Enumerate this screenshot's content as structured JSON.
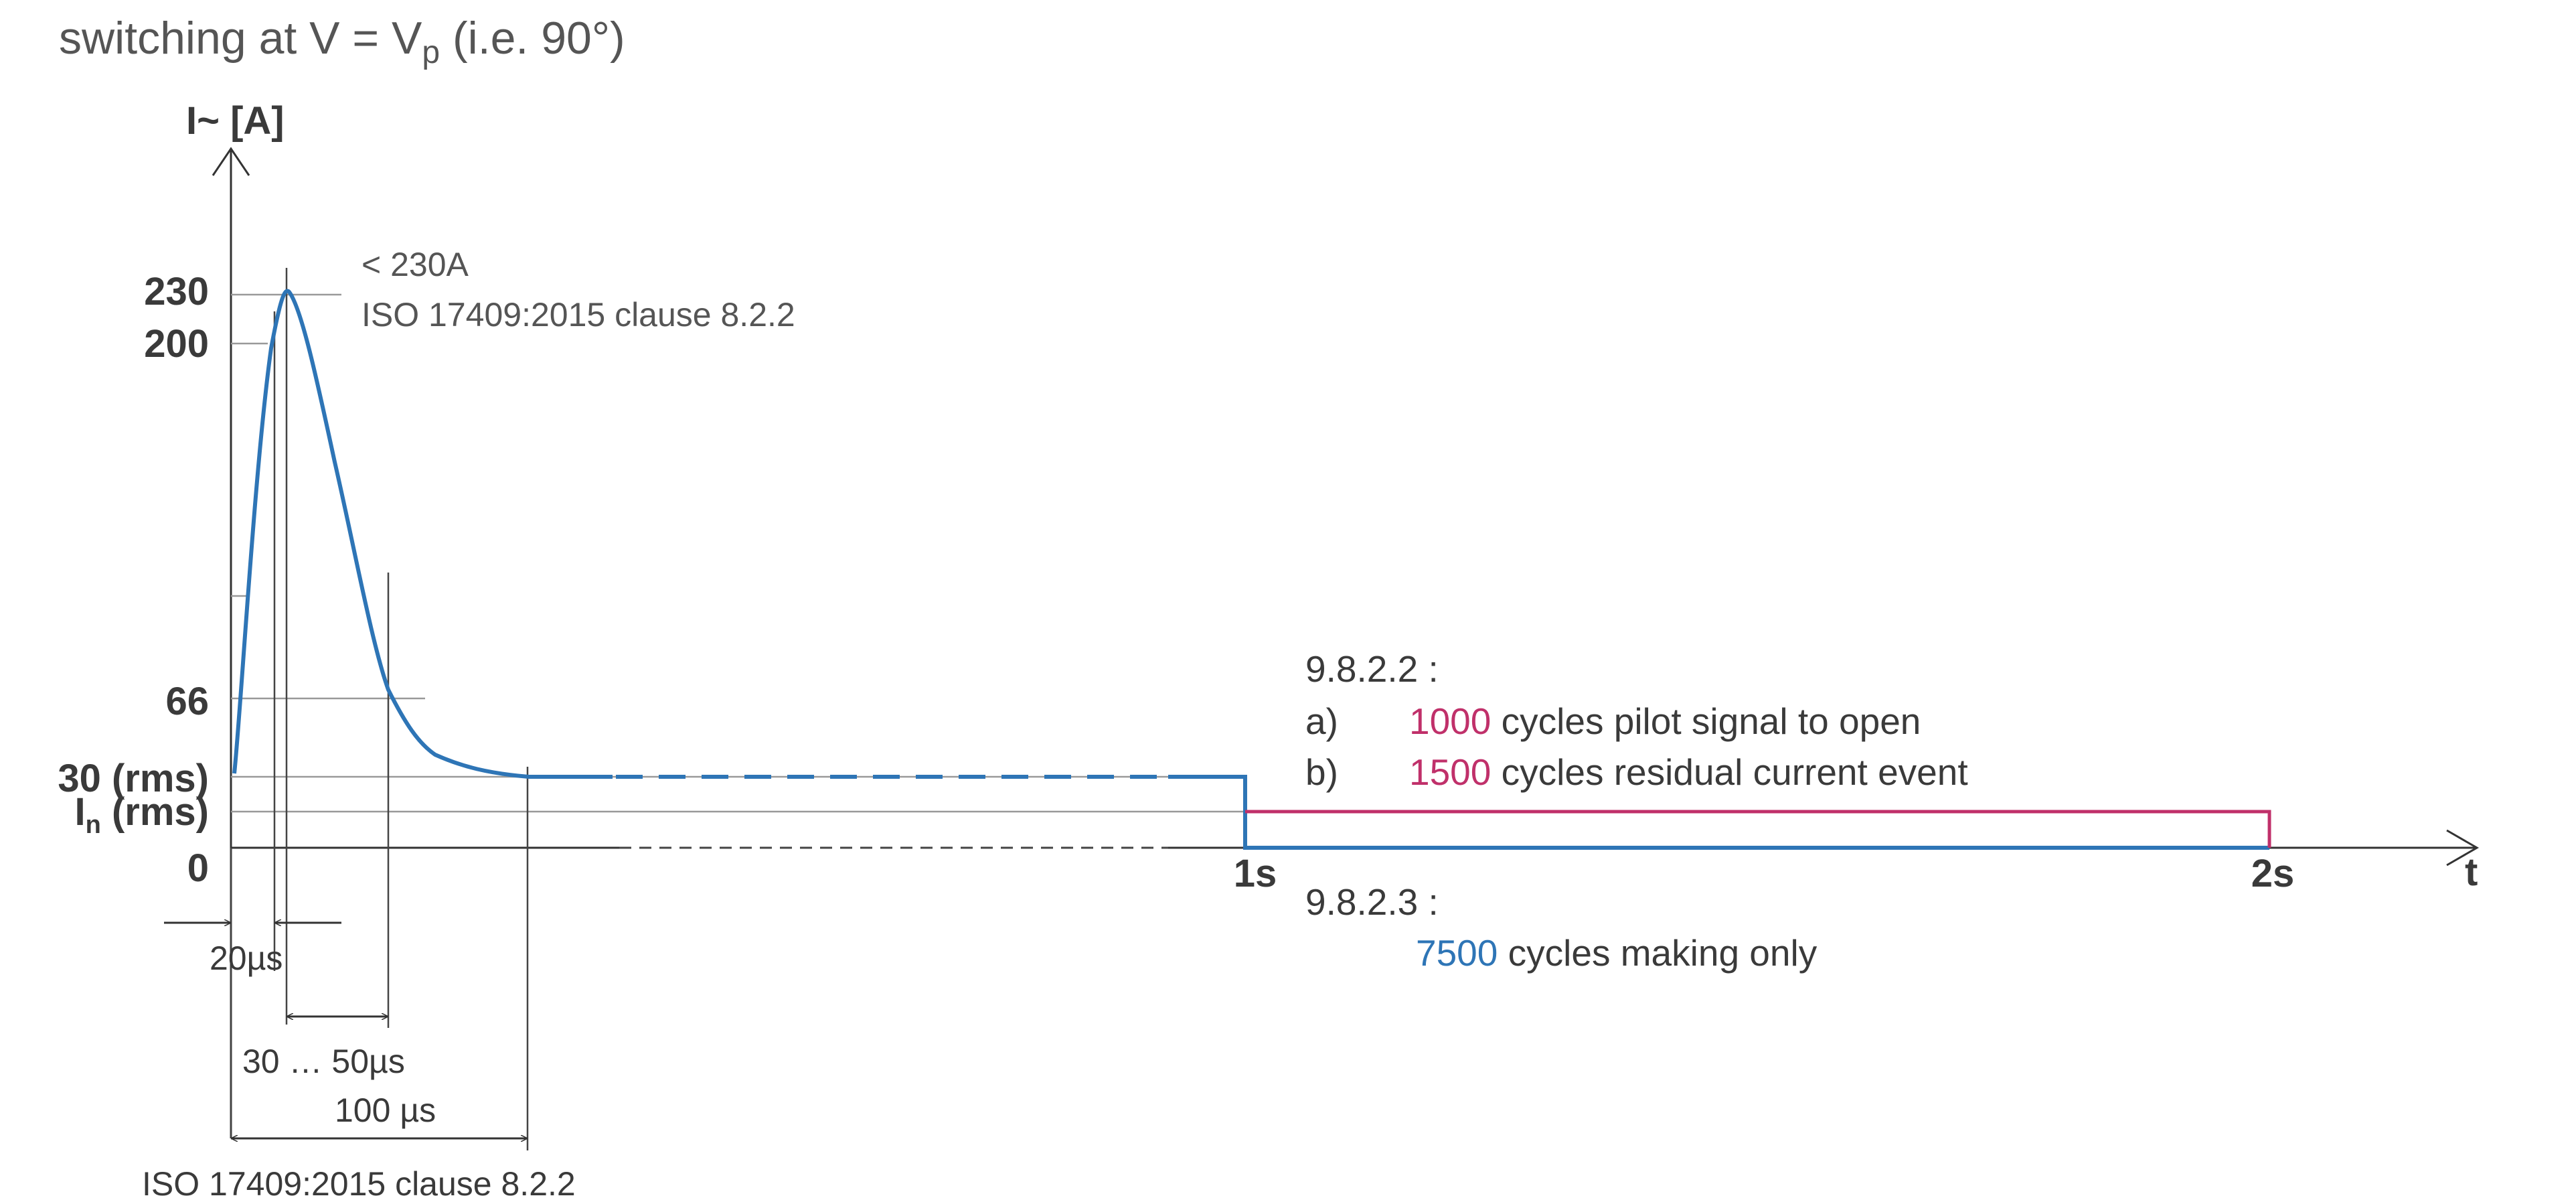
{
  "header": {
    "prefix": "switching at V = V",
    "sub": "p",
    "suffix": " (i.e. 90°)"
  },
  "y_axis": {
    "label": "I~ [A]",
    "ticks": {
      "t230": "230",
      "t200": "200",
      "t66": "66",
      "t30": "30 (rms)",
      "tin": "I",
      "tin_sub": "n",
      "tin_suffix": " (rms)",
      "t0": "0"
    }
  },
  "x_axis": {
    "label": "t",
    "ticks": {
      "t1": "1s",
      "t2": "2s"
    }
  },
  "peak_note": {
    "line1": "< 230A",
    "line2": "ISO 17409:2015  clause  8.2.2"
  },
  "clause_982": {
    "title": "9.8.2.2 :",
    "a_marker": "a)",
    "a_count": "1000",
    "a_text": "cycles pilot signal to open",
    "b_marker": "b)",
    "b_count": "1500",
    "b_text": "cycles residual current event"
  },
  "clause_983": {
    "title": "9.8.2.3 :",
    "count": "7500",
    "text": "cycles making only"
  },
  "dimensions": {
    "d20": "20µs",
    "d30_50": "30 … 50µs",
    "d100": "100 µs",
    "bottom_note": "ISO 17409:2015   clause  8.2.2"
  },
  "colors": {
    "blue": "#2e75b6",
    "magenta": "#c0306a",
    "text": "#555555",
    "axis": "#333333"
  }
}
